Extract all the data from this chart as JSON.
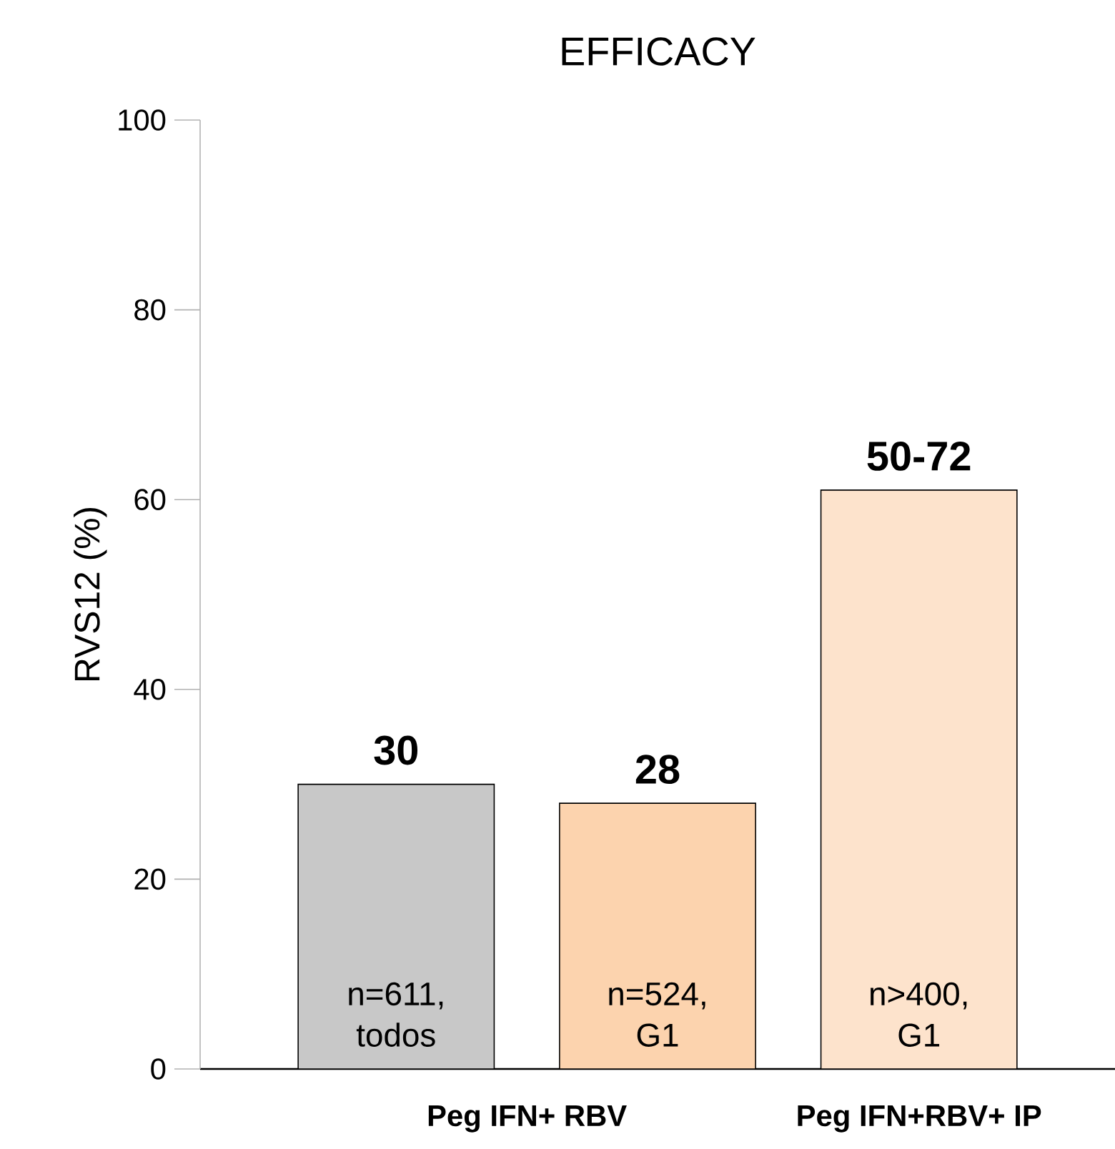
{
  "chart_data": {
    "type": "bar",
    "title": "EFFICACY",
    "ylabel": "RVS12 (%)",
    "categories": [
      null,
      null,
      null
    ],
    "values": [
      30,
      28,
      61
    ],
    "colors": [
      "#c8c8c8",
      "#fcd3ae",
      "#fde3cc"
    ],
    "value_labels": [
      "30",
      "28",
      "50-72"
    ],
    "ylim": [
      0,
      100
    ],
    "yticks": [
      0,
      20,
      40,
      60,
      80,
      100
    ],
    "annotations": [
      "Peg IFN+ RBV",
      "Peg IFN+RBV+ IP",
      "n=611, todos",
      "n=524, G1",
      "n>400, G1"
    ],
    "grid": false
  }
}
